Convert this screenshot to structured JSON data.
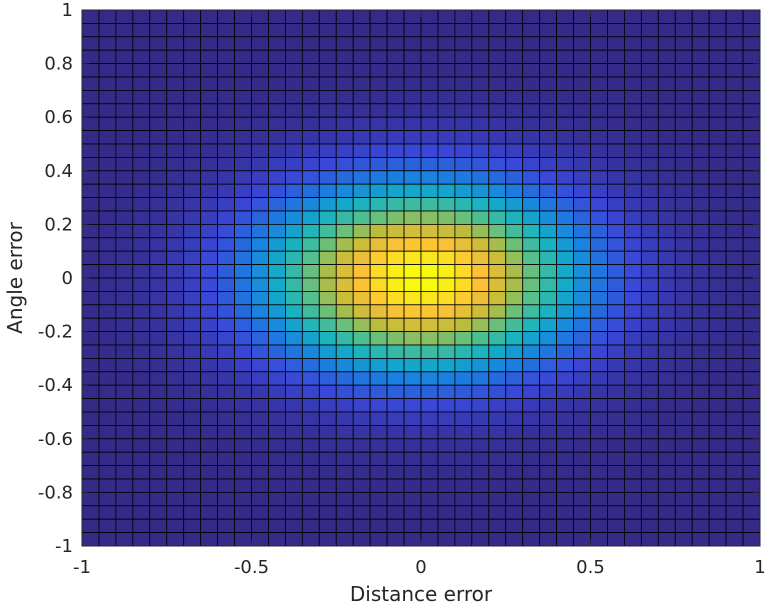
{
  "chart_data": {
    "type": "heatmap",
    "title": "",
    "xlabel": "Distance error",
    "ylabel": "Angle error",
    "xlim": [
      -1,
      1
    ],
    "ylim": [
      -1,
      1
    ],
    "x_ticks": [
      "-1",
      "-0.5",
      "0",
      "0.5",
      "1"
    ],
    "x_tick_values": [
      -1,
      -0.5,
      0,
      0.5,
      1
    ],
    "y_ticks": [
      "-1",
      "-0.8",
      "-0.6",
      "-0.4",
      "-0.2",
      "0",
      "0.2",
      "0.4",
      "0.6",
      "0.8",
      "1"
    ],
    "y_tick_values": [
      -1,
      -0.8,
      -0.6,
      -0.4,
      -0.2,
      0,
      0.2,
      0.4,
      0.6,
      0.8,
      1
    ],
    "grid_resolution": 0.05,
    "surface": "approximately Gaussian bump centered at (0, 0); x spread ~0.32, y spread ~0.24",
    "z_peak": 1.0,
    "sigma_x": 0.32,
    "sigma_y": 0.24,
    "colormap": "parula",
    "colormap_stops": [
      "#352a87",
      "#3a47d8",
      "#1a80e0",
      "#14b1c5",
      "#56c08a",
      "#bcbc3b",
      "#fcc137",
      "#f9fb0e"
    ],
    "edge_color": "#000000"
  }
}
